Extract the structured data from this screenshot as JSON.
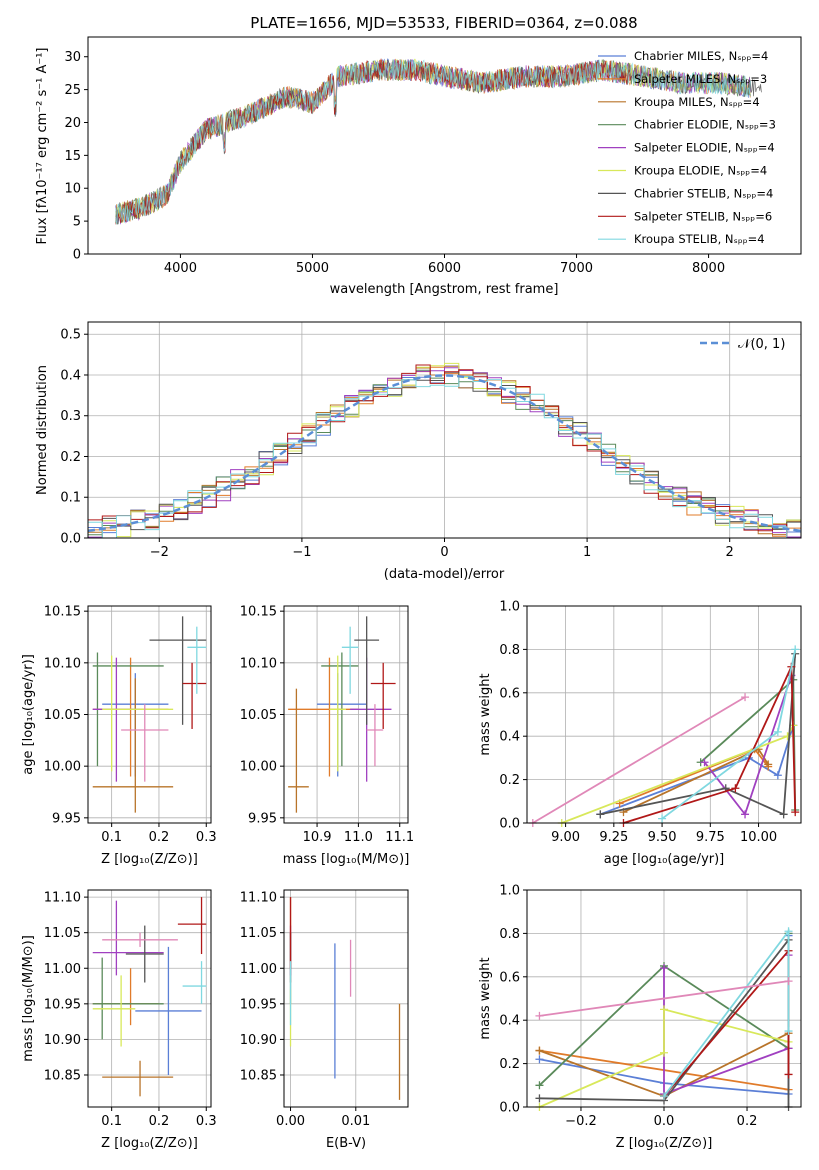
{
  "colors": {
    "Chabrier MILES": "#5b7fd6",
    "Salpeter MILES": "#e07b2a",
    "Kroupa MILES": "#b8742a",
    "Chabrier ELODIE": "#5a8a5a",
    "Salpeter ELODIE": "#a040c0",
    "Kroupa ELODIE": "#d8e85a",
    "Chabrier STELIB": "#555555",
    "Salpeter STELIB": "#b01818",
    "Kroupa STELIB": "#80d8e0",
    "extra": "#e088b8",
    "gauss": "#5b8fd6"
  },
  "spectrum": {
    "title": "PLATE=1656, MJD=53533, FIBERID=0364, z=0.088",
    "xlabel": "wavelength [Angstrom, rest frame]",
    "ylabel": "Flux [fλ10⁻¹⁷ erg cm⁻² s⁻¹ A⁻¹]",
    "xticks": [
      "4000",
      "5000",
      "6000",
      "7000",
      "8000"
    ],
    "yticks": [
      "0",
      "5",
      "10",
      "15",
      "20",
      "25",
      "30"
    ],
    "xlim": [
      3300,
      8700
    ],
    "ylim": [
      0,
      33
    ],
    "legend": [
      "Chabrier MILES, N_SSP=4",
      "Salpeter MILES, N_SSP=3",
      "Kroupa MILES, N_SSP=4",
      "Chabrier ELODIE, N_SSP=3",
      "Salpeter ELODIE, N_SSP=4",
      "Kroupa ELODIE, N_SSP=4",
      "Chabrier STELIB, N_SSP=4",
      "Salpeter STELIB, N_SSP=6",
      "Kroupa STELIB, N_SSP=4"
    ]
  },
  "histogram": {
    "xlabel": "(data-model)/error",
    "ylabel": "Normed distribution",
    "xticks": [
      "−2",
      "−1",
      "0",
      "1",
      "2"
    ],
    "yticks": [
      "0.0",
      "0.1",
      "0.2",
      "0.3",
      "0.4",
      "0.5"
    ],
    "xlim": [
      -2.5,
      2.5
    ],
    "ylim": [
      0,
      0.53
    ],
    "legend": "𝒩(0, 1)"
  },
  "chart_data": [
    {
      "type": "line",
      "title": "PLATE=1656, MJD=53533, FIBERID=0364, z=0.088",
      "xlabel": "wavelength [Angstrom, rest frame]",
      "ylabel": "Flux [fλ10⁻¹⁷ erg cm⁻² s⁻¹ A⁻¹]",
      "xlim": [
        3300,
        8700
      ],
      "ylim": [
        0,
        33
      ],
      "x": [
        3500,
        3700,
        3900,
        4000,
        4200,
        4500,
        4800,
        5000,
        5200,
        5500,
        5800,
        6000,
        6300,
        6600,
        6900,
        7200,
        7500,
        7800,
        8100,
        8400
      ],
      "y": [
        6,
        7,
        9,
        14,
        19,
        21,
        24,
        23,
        27,
        28,
        28,
        27,
        26,
        27,
        27,
        28,
        27,
        26,
        26,
        25
      ],
      "legend_placement": "upper right"
    },
    {
      "type": "line",
      "xlabel": "(data-model)/error",
      "ylabel": "Normed distribution",
      "xlim": [
        -2.5,
        2.5
      ],
      "ylim": [
        0,
        0.53
      ],
      "series": [
        {
          "name": "𝒩(0, 1)",
          "x": [
            -2.5,
            -2.0,
            -1.5,
            -1.0,
            -0.5,
            0.0,
            0.5,
            1.0,
            1.5,
            2.0,
            2.5
          ],
          "y": [
            0.018,
            0.054,
            0.13,
            0.242,
            0.352,
            0.399,
            0.352,
            0.242,
            0.13,
            0.054,
            0.018
          ]
        }
      ],
      "histogram_bin_width": 0.1,
      "legend_placement": "upper right",
      "grid": true
    },
    {
      "type": "scatter",
      "xlabel": "Z [log₁₀(Z/Z⊙)]",
      "ylabel": "age  [log₁₀(age/yr)]",
      "xticks": [
        "0.1",
        "0.2",
        "0.3"
      ],
      "yticks": [
        "9.95",
        "10.00",
        "10.05",
        "10.10",
        "10.15"
      ],
      "xlim": [
        0.05,
        0.31
      ],
      "ylim": [
        9.945,
        10.155
      ],
      "grid": true,
      "points": [
        {
          "name": "Chabrier MILES",
          "x": 0.15,
          "y": 10.06,
          "xerr": [
            0.08,
            0.22
          ],
          "yerr": [
            9.99,
            10.09
          ]
        },
        {
          "name": "Salpeter MILES",
          "x": 0.14,
          "y": 10.055,
          "xerr": [
            0.06,
            0.22
          ],
          "yerr": [
            9.99,
            10.105
          ]
        },
        {
          "name": "Kroupa MILES",
          "x": 0.15,
          "y": 9.98,
          "xerr": [
            0.06,
            0.23
          ],
          "yerr": [
            9.955,
            10.085
          ]
        },
        {
          "name": "Chabrier ELODIE",
          "x": 0.07,
          "y": 10.097,
          "xerr": [
            0.06,
            0.21
          ],
          "yerr": [
            10.0,
            10.11
          ]
        },
        {
          "name": "Salpeter ELODIE",
          "x": 0.11,
          "y": 10.055,
          "xerr": [
            0.06,
            0.16
          ],
          "yerr": [
            9.985,
            10.105
          ]
        },
        {
          "name": "Kroupa ELODIE",
          "x": 0.1,
          "y": 10.055,
          "xerr": [
            0.08,
            0.23
          ],
          "yerr": [
            9.995,
            10.107
          ]
        },
        {
          "name": "Chabrier STELIB",
          "x": 0.25,
          "y": 10.122,
          "xerr": [
            0.18,
            0.3
          ],
          "yerr": [
            10.04,
            10.145
          ]
        },
        {
          "name": "Salpeter STELIB",
          "x": 0.27,
          "y": 10.08,
          "xerr": [
            0.25,
            0.3
          ],
          "yerr": [
            10.036,
            10.1
          ]
        },
        {
          "name": "Kroupa STELIB",
          "x": 0.28,
          "y": 10.115,
          "xerr": [
            0.26,
            0.3
          ],
          "yerr": [
            10.07,
            10.135
          ]
        },
        {
          "name": "extra",
          "x": 0.17,
          "y": 10.035,
          "xerr": [
            0.12,
            0.22
          ],
          "yerr": [
            9.985,
            10.06
          ]
        }
      ]
    },
    {
      "type": "scatter",
      "xlabel": "mass [log₁₀(M/M⊙)]",
      "xticks": [
        "10.9",
        "11.0",
        "11.1"
      ],
      "yticks": [
        "9.95",
        "10.00",
        "10.05",
        "10.10",
        "10.15"
      ],
      "xlim": [
        10.82,
        11.12
      ],
      "ylim": [
        9.945,
        10.155
      ],
      "grid": true,
      "points": [
        {
          "name": "Chabrier MILES",
          "x": 10.95,
          "y": 10.06,
          "xerr": [
            10.9,
            11.02
          ],
          "yerr": [
            9.99,
            10.09
          ]
        },
        {
          "name": "Salpeter MILES",
          "x": 10.93,
          "y": 10.055,
          "xerr": [
            10.83,
            11.0
          ],
          "yerr": [
            9.99,
            10.105
          ]
        },
        {
          "name": "Kroupa MILES",
          "x": 10.85,
          "y": 9.98,
          "xerr": [
            10.83,
            10.88
          ],
          "yerr": [
            9.955,
            10.075
          ]
        },
        {
          "name": "Chabrier ELODIE",
          "x": 10.96,
          "y": 10.097,
          "xerr": [
            10.91,
            11.0
          ],
          "yerr": [
            10.0,
            10.11
          ]
        },
        {
          "name": "Salpeter ELODIE",
          "x": 11.02,
          "y": 10.055,
          "xerr": [
            10.98,
            11.08
          ],
          "yerr": [
            9.985,
            10.105
          ]
        },
        {
          "name": "Kroupa ELODIE",
          "x": 10.95,
          "y": 10.055,
          "xerr": [
            10.93,
            10.97
          ],
          "yerr": [
            9.995,
            10.107
          ]
        },
        {
          "name": "Chabrier STELIB",
          "x": 11.02,
          "y": 10.122,
          "xerr": [
            10.99,
            11.05
          ],
          "yerr": [
            10.04,
            10.145
          ]
        },
        {
          "name": "Salpeter STELIB",
          "x": 11.06,
          "y": 10.08,
          "xerr": [
            11.03,
            11.09
          ],
          "yerr": [
            10.036,
            10.1
          ]
        },
        {
          "name": "Kroupa STELIB",
          "x": 10.98,
          "y": 10.115,
          "xerr": [
            10.96,
            11.0
          ],
          "yerr": [
            10.07,
            10.135
          ]
        },
        {
          "name": "extra",
          "x": 11.04,
          "y": 10.035,
          "xerr": [
            11.02,
            11.06
          ],
          "yerr": [
            10.0,
            10.06
          ]
        }
      ]
    },
    {
      "type": "line",
      "xlabel": "age  [log₁₀(age/yr)]",
      "ylabel": "mass weight",
      "xticks": [
        "9.00",
        "9.25",
        "9.50",
        "9.75",
        "10.00"
      ],
      "yticks": [
        "0.0",
        "0.2",
        "0.4",
        "0.6",
        "0.8",
        "1.0"
      ],
      "xlim": [
        8.8,
        10.22
      ],
      "ylim": [
        0,
        1.0
      ],
      "grid": true,
      "series": [
        {
          "name": "Chabrier MILES",
          "x": [
            9.18,
            9.95,
            10.1,
            10.18
          ],
          "y": [
            0.04,
            0.3,
            0.22,
            0.45
          ]
        },
        {
          "name": "Salpeter MILES",
          "x": [
            9.28,
            9.98,
            10.05
          ],
          "y": [
            0.09,
            0.34,
            0.26
          ]
        },
        {
          "name": "Kroupa MILES",
          "x": [
            9.3,
            10.0,
            10.05
          ],
          "y": [
            0.05,
            0.34,
            0.27
          ]
        },
        {
          "name": "Chabrier ELODIE",
          "x": [
            9.7,
            10.18,
            10.19
          ],
          "y": [
            0.28,
            0.66,
            0.06
          ]
        },
        {
          "name": "Salpeter ELODIE",
          "x": [
            9.72,
            9.93,
            10.17
          ],
          "y": [
            0.28,
            0.04,
            0.68
          ]
        },
        {
          "name": "Kroupa ELODIE",
          "x": [
            8.98,
            10.15,
            10.18
          ],
          "y": [
            0.0,
            0.4,
            0.45
          ]
        },
        {
          "name": "Chabrier STELIB",
          "x": [
            9.18,
            9.83,
            10.13,
            10.19
          ],
          "y": [
            0.04,
            0.16,
            0.04,
            0.78
          ]
        },
        {
          "name": "Salpeter STELIB",
          "x": [
            9.3,
            9.88,
            10.17,
            10.19
          ],
          "y": [
            0.0,
            0.16,
            0.72,
            0.05
          ]
        },
        {
          "name": "Kroupa STELIB",
          "x": [
            9.5,
            10.1,
            10.19
          ],
          "y": [
            0.02,
            0.42,
            0.8
          ]
        },
        {
          "name": "extra",
          "x": [
            8.83,
            9.93
          ],
          "y": [
            0.0,
            0.58
          ]
        }
      ]
    },
    {
      "type": "scatter",
      "xlabel": "Z [log₁₀(Z/Z⊙)]",
      "ylabel": "mass [log₁₀(M/M⊙)]",
      "xticks": [
        "0.1",
        "0.2",
        "0.3"
      ],
      "yticks": [
        "10.85",
        "10.90",
        "10.95",
        "11.00",
        "11.05",
        "11.10"
      ],
      "xlim": [
        0.05,
        0.31
      ],
      "ylim": [
        10.805,
        11.11
      ],
      "grid": true,
      "points": [
        {
          "name": "Chabrier MILES",
          "x": 0.22,
          "y": 10.94,
          "xerr": [
            0.15,
            0.29
          ],
          "yerr": [
            10.85,
            11.03
          ]
        },
        {
          "name": "Salpeter MILES",
          "x": 0.14,
          "y": 10.95,
          "xerr": [
            0.06,
            0.2
          ],
          "yerr": [
            10.92,
            11.0
          ]
        },
        {
          "name": "Kroupa MILES",
          "x": 0.16,
          "y": 10.847,
          "xerr": [
            0.08,
            0.23
          ],
          "yerr": [
            10.82,
            10.87
          ]
        },
        {
          "name": "Chabrier ELODIE",
          "x": 0.08,
          "y": 10.95,
          "xerr": [
            0.06,
            0.21
          ],
          "yerr": [
            10.9,
            11.015
          ]
        },
        {
          "name": "Salpeter ELODIE",
          "x": 0.11,
          "y": 11.022,
          "xerr": [
            0.06,
            0.21
          ],
          "yerr": [
            10.99,
            11.095
          ]
        },
        {
          "name": "Kroupa ELODIE",
          "x": 0.12,
          "y": 10.943,
          "xerr": [
            0.06,
            0.15
          ],
          "yerr": [
            10.89,
            10.99
          ]
        },
        {
          "name": "Chabrier STELIB",
          "x": 0.17,
          "y": 11.02,
          "xerr": [
            0.13,
            0.21
          ],
          "yerr": [
            10.98,
            11.06
          ]
        },
        {
          "name": "Salpeter STELIB",
          "x": 0.29,
          "y": 11.062,
          "xerr": [
            0.24,
            0.3
          ],
          "yerr": [
            11.02,
            11.1
          ]
        },
        {
          "name": "Kroupa STELIB",
          "x": 0.29,
          "y": 10.975,
          "xerr": [
            0.25,
            0.3
          ],
          "yerr": [
            10.95,
            11.01
          ]
        },
        {
          "name": "extra",
          "x": 0.16,
          "y": 11.04,
          "xerr": [
            0.08,
            0.24
          ],
          "yerr": [
            11.03,
            11.05
          ]
        }
      ]
    },
    {
      "type": "scatter",
      "xlabel": "E(B-V)",
      "xticks": [
        "0.00",
        "0.01"
      ],
      "yticks": [
        "10.85",
        "10.90",
        "10.95",
        "11.00",
        "11.05",
        "11.10"
      ],
      "xlim": [
        -0.001,
        0.018
      ],
      "ylim": [
        10.805,
        11.11
      ],
      "grid": true,
      "points": [
        {
          "name": "Chabrier MILES",
          "x": 0.0068,
          "y": 10.94,
          "yerr": [
            10.845,
            11.035
          ]
        },
        {
          "name": "Salpeter MILES",
          "x": 0.0,
          "y": 11.05,
          "yerr": [
            11.0,
            11.1
          ]
        },
        {
          "name": "Kroupa MILES",
          "x": 0.0167,
          "y": 10.885,
          "yerr": [
            10.815,
            10.95
          ]
        },
        {
          "name": "Chabrier ELODIE",
          "x": 0.0,
          "y": 11.0,
          "yerr": [
            10.95,
            11.05
          ]
        },
        {
          "name": "Salpeter ELODIE",
          "x": 0.0,
          "y": 11.03,
          "yerr": [
            10.99,
            11.06
          ]
        },
        {
          "name": "Kroupa ELODIE",
          "x": 0.0,
          "y": 10.93,
          "yerr": [
            10.89,
            10.97
          ]
        },
        {
          "name": "Chabrier STELIB",
          "x": 0.0,
          "y": 11.02,
          "yerr": [
            10.98,
            11.05
          ]
        },
        {
          "name": "Salpeter STELIB",
          "x": 0.0,
          "y": 11.06,
          "yerr": [
            11.0,
            11.1
          ]
        },
        {
          "name": "Kroupa STELIB",
          "x": 0.0,
          "y": 10.97,
          "yerr": [
            10.92,
            11.01
          ]
        },
        {
          "name": "extra",
          "x": 0.0092,
          "y": 11.0,
          "yerr": [
            10.96,
            11.04
          ]
        }
      ]
    },
    {
      "type": "line",
      "xlabel": "Z [log₁₀(Z/Z⊙)]",
      "ylabel": "mass weight",
      "xticks": [
        "−0.2",
        "0.0",
        "0.2"
      ],
      "yticks": [
        "0.0",
        "0.2",
        "0.4",
        "0.6",
        "0.8",
        "1.0"
      ],
      "xlim": [
        -0.33,
        0.33
      ],
      "ylim": [
        0,
        1.0
      ],
      "grid": true,
      "series": [
        {
          "name": "Chabrier MILES",
          "x": [
            -0.3,
            0.0,
            0.3,
            0.3
          ],
          "y": [
            0.22,
            0.11,
            0.06,
            0.79
          ]
        },
        {
          "name": "Salpeter MILES",
          "x": [
            -0.3,
            0.3
          ],
          "y": [
            0.26,
            0.08
          ]
        },
        {
          "name": "Kroupa MILES",
          "x": [
            -0.3,
            0.0,
            0.3
          ],
          "y": [
            0.26,
            0.05,
            0.34
          ]
        },
        {
          "name": "Chabrier ELODIE",
          "x": [
            -0.3,
            0.0,
            0.3,
            0.3
          ],
          "y": [
            0.1,
            0.65,
            0.27,
            0.8
          ]
        },
        {
          "name": "Salpeter ELODIE",
          "x": [
            0.0,
            0.0,
            0.3,
            0.3
          ],
          "y": [
            0.64,
            0.06,
            0.27,
            0.7
          ]
        },
        {
          "name": "Kroupa ELODIE",
          "x": [
            -0.3,
            0.0,
            0.0,
            0.3
          ],
          "y": [
            0.0,
            0.25,
            0.45,
            0.3
          ]
        },
        {
          "name": "Chabrier STELIB",
          "x": [
            -0.3,
            0.0,
            0.3,
            0.3
          ],
          "y": [
            0.04,
            0.03,
            0.77,
            0.0
          ]
        },
        {
          "name": "Salpeter STELIB",
          "x": [
            0.0,
            0.3,
            0.3
          ],
          "y": [
            0.05,
            0.72,
            0.15
          ]
        },
        {
          "name": "Kroupa STELIB",
          "x": [
            0.0,
            0.3,
            0.3
          ],
          "y": [
            0.05,
            0.81,
            0.35
          ]
        },
        {
          "name": "extra",
          "x": [
            -0.3,
            0.3
          ],
          "y": [
            0.42,
            0.58
          ]
        }
      ]
    }
  ]
}
